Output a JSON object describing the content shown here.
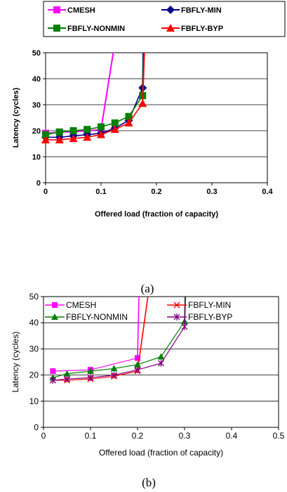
{
  "chart_data": [
    {
      "type": "line",
      "caption": "(a)",
      "xlabel": "Offered load (fraction of capacity)",
      "ylabel": "Latency (cycles)",
      "xlim": [
        0,
        0.4
      ],
      "ylim": [
        0,
        50
      ],
      "xticks": [
        "0",
        "0.1",
        "0.2",
        "0.3",
        "0.4"
      ],
      "yticks": [
        "0",
        "10",
        "20",
        "30",
        "40",
        "50"
      ],
      "grid": "horizontal",
      "legend": "top, boxed, 2 columns",
      "series": [
        {
          "name": "CMESH",
          "color": "#ff00ff",
          "marker": "square",
          "x": [
            0.0,
            0.025,
            0.05,
            0.075,
            0.1,
            0.1
          ],
          "y": [
            19,
            19.5,
            19.5,
            20,
            20.5,
            20.5
          ],
          "asymptote": {
            "from": [
              0.1,
              20.5
            ],
            "to": [
              0.122,
              50
            ]
          }
        },
        {
          "name": "FBFLY-MIN",
          "color": "#00008b",
          "marker": "diamond",
          "x": [
            0.0,
            0.025,
            0.05,
            0.075,
            0.1,
            0.125,
            0.15,
            0.175
          ],
          "y": [
            17.5,
            17.5,
            18,
            18.5,
            19,
            21,
            24,
            36.5
          ],
          "asymptote": {
            "from": [
              0.175,
              36.5
            ],
            "to": [
              0.176,
              50
            ]
          }
        },
        {
          "name": "FBFLY-NONMIN",
          "color": "#008000",
          "marker": "square",
          "x": [
            0.0,
            0.025,
            0.05,
            0.075,
            0.1,
            0.125,
            0.15,
            0.175
          ],
          "y": [
            18.5,
            19.5,
            20,
            20.5,
            21.5,
            23,
            25.5,
            33.5
          ],
          "asymptote": {
            "from": [
              0.175,
              33.5
            ],
            "to": [
              0.177,
              50
            ]
          }
        },
        {
          "name": "FBFLY-BYP",
          "color": "#ff0000",
          "marker": "triangle",
          "x": [
            0.0,
            0.025,
            0.05,
            0.075,
            0.1,
            0.125,
            0.15,
            0.175
          ],
          "y": [
            16.5,
            16.5,
            17,
            17.5,
            18.5,
            20.5,
            23,
            30.5
          ],
          "asymptote": {
            "from": [
              0.175,
              30.5
            ],
            "to": [
              0.178,
              50
            ]
          }
        }
      ]
    },
    {
      "type": "line",
      "caption": "(b)",
      "xlabel": "Offered load (fraction of capacity)",
      "ylabel": "Latency (cycles)",
      "xlim": [
        0,
        0.5
      ],
      "ylim": [
        0,
        50
      ],
      "xticks": [
        "0",
        "0.1",
        "0.2",
        "0.3",
        "0.4",
        "0.5"
      ],
      "yticks": [
        "0",
        "10",
        "20",
        "30",
        "40",
        "50"
      ],
      "grid": "horizontal",
      "legend": "top, 2 columns",
      "series": [
        {
          "name": "CMESH",
          "color": "#ff00ff",
          "marker": "square",
          "x": [
            0.02,
            0.1,
            0.2
          ],
          "y": [
            21.5,
            22,
            26.5
          ],
          "asymptote": {
            "from": [
              0.2,
              26.5
            ],
            "to": [
              0.203,
              50
            ]
          }
        },
        {
          "name": "FBFLY-MIN",
          "color": "#ff0000",
          "marker": "x",
          "x": [
            0.02,
            0.05,
            0.1,
            0.15,
            0.2
          ],
          "y": [
            18,
            18,
            18.5,
            19.5,
            21.5
          ],
          "asymptote": {
            "from": [
              0.2,
              21.5
            ],
            "to": [
              0.222,
              50
            ]
          }
        },
        {
          "name": "FBFLY-NONMIN",
          "color": "#008000",
          "marker": "triangle",
          "x": [
            0.02,
            0.05,
            0.1,
            0.15,
            0.2,
            0.25,
            0.3
          ],
          "y": [
            19,
            20.5,
            21.5,
            22.5,
            24,
            27,
            40.5
          ],
          "asymptote": {
            "from": [
              0.3,
              40.5
            ],
            "to": [
              0.301,
              50
            ]
          }
        },
        {
          "name": "FBFLY-BYP",
          "color": "#800080",
          "marker": "star",
          "x": [
            0.02,
            0.05,
            0.1,
            0.15,
            0.2,
            0.25,
            0.3
          ],
          "y": [
            18,
            18.5,
            19,
            20,
            22,
            24.5,
            38.5
          ],
          "asymptote": {
            "from": [
              0.3,
              38.5
            ],
            "to": [
              0.302,
              50
            ]
          }
        }
      ]
    }
  ]
}
